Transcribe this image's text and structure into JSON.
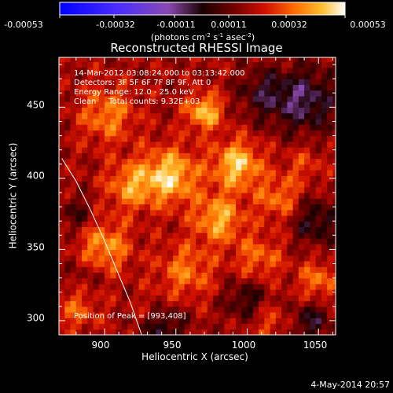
{
  "chart_data": {
    "type": "heatmap",
    "title": "Reconstructed RHESSI Image",
    "xlabel": "Heliocentric X (arcsec)",
    "ylabel": "Heliocentric Y (arcsec)",
    "xlim": [
      868,
      1062
    ],
    "ylim": [
      290,
      485
    ],
    "x_ticks": [
      900,
      950,
      1000,
      1050
    ],
    "y_ticks": [
      300,
      350,
      400,
      450
    ],
    "colorbar": {
      "ticks": [
        "-0.00053",
        "-0.00032",
        "-0.00011",
        "0.00011",
        "0.00032",
        "0.00053"
      ],
      "units_prefix": "(photons cm",
      "units_exp1": "-2",
      "units_mid1": " s",
      "units_exp2": "-1",
      "units_mid2": " asec",
      "units_exp3": "-2",
      "units_suffix": ")",
      "range": [
        -0.00053,
        0.00053
      ]
    },
    "annotations": [
      "14-Mar-2012 03:08:24.000 to 03:13:42.000",
      "Detectors: 3F 5F 6F 7F 8F 9F, Att 0",
      "Energy Range: 12.0 - 25.0 keV",
      "Clean     Total counts: 9.32E+03"
    ],
    "peak_label": "Position of Peak = [993,408]",
    "peak": [
      993,
      408
    ],
    "limb_curve": [
      [
        870,
        414
      ],
      [
        880,
        398
      ],
      [
        890,
        378
      ],
      [
        900,
        356
      ],
      [
        910,
        332
      ],
      [
        918,
        313
      ],
      [
        926,
        290
      ]
    ],
    "sources": [
      {
        "x": 970,
        "y": 447,
        "amp": 0.95,
        "sigma": 9
      },
      {
        "x": 946,
        "y": 402,
        "amp": 1.0,
        "sigma": 14
      },
      {
        "x": 993,
        "y": 410,
        "amp": 1.0,
        "sigma": 12
      },
      {
        "x": 980,
        "y": 372,
        "amp": 0.85,
        "sigma": 12
      },
      {
        "x": 918,
        "y": 395,
        "amp": 0.7,
        "sigma": 12
      },
      {
        "x": 900,
        "y": 352,
        "amp": 0.75,
        "sigma": 13
      },
      {
        "x": 902,
        "y": 445,
        "amp": 0.65,
        "sigma": 14
      },
      {
        "x": 957,
        "y": 335,
        "amp": 0.6,
        "sigma": 14
      },
      {
        "x": 1022,
        "y": 386,
        "amp": 0.6,
        "sigma": 11
      },
      {
        "x": 1008,
        "y": 344,
        "amp": 0.55,
        "sigma": 12
      },
      {
        "x": 1050,
        "y": 328,
        "amp": 0.6,
        "sigma": 10
      },
      {
        "x": 1040,
        "y": 410,
        "amp": 0.35,
        "sigma": 10
      },
      {
        "x": 935,
        "y": 305,
        "amp": 0.4,
        "sigma": 10
      },
      {
        "x": 880,
        "y": 310,
        "amp": 0.5,
        "sigma": 12
      },
      {
        "x": 1015,
        "y": 300,
        "amp": 0.4,
        "sigma": 10
      }
    ],
    "negative_regions": [
      {
        "x": 1040,
        "y": 455,
        "amp": -0.8,
        "sigma": 16
      },
      {
        "x": 1048,
        "y": 370,
        "amp": -0.6,
        "sigma": 12
      },
      {
        "x": 940,
        "y": 298,
        "amp": -0.8,
        "sigma": 11
      },
      {
        "x": 1000,
        "y": 315,
        "amp": -0.55,
        "sigma": 11
      },
      {
        "x": 885,
        "y": 330,
        "amp": -0.3,
        "sigma": 10
      },
      {
        "x": 1010,
        "y": 460,
        "amp": -0.5,
        "sigma": 12
      },
      {
        "x": 880,
        "y": 375,
        "amp": -0.4,
        "sigma": 9
      },
      {
        "x": 1045,
        "y": 300,
        "amp": -0.6,
        "sigma": 10
      }
    ]
  },
  "footer_date": "4-May-2014 20:57"
}
